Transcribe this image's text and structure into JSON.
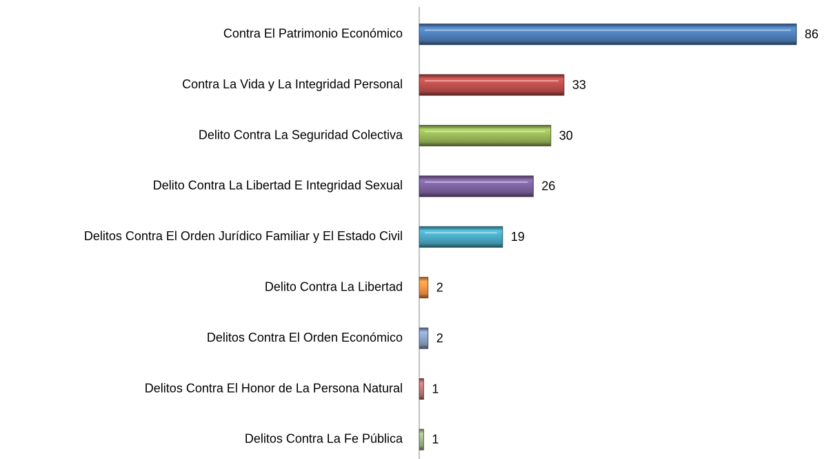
{
  "chart_data": {
    "type": "bar",
    "orientation": "horizontal",
    "categories": [
      "Contra El Patrimonio Económico",
      "Contra La Vida y La Integridad Personal",
      "Delito Contra La Seguridad Colectiva",
      "Delito Contra La Libertad E Integridad Sexual",
      "Delitos Contra El Orden Jurídico Familiar y El Estado Civil",
      "Delito Contra La Libertad",
      "Delitos Contra El Orden Económico",
      "Delitos Contra El Honor de La Persona  Natural",
      "Delitos Contra La Fe Pública"
    ],
    "values": [
      86,
      33,
      30,
      26,
      19,
      2,
      2,
      1,
      1
    ],
    "colors": [
      "#4f81bd",
      "#c0504d",
      "#9bbb59",
      "#8064a2",
      "#4bacc6",
      "#f79646",
      "#8da3c9",
      "#c47b7a",
      "#a5bb8a"
    ]
  }
}
